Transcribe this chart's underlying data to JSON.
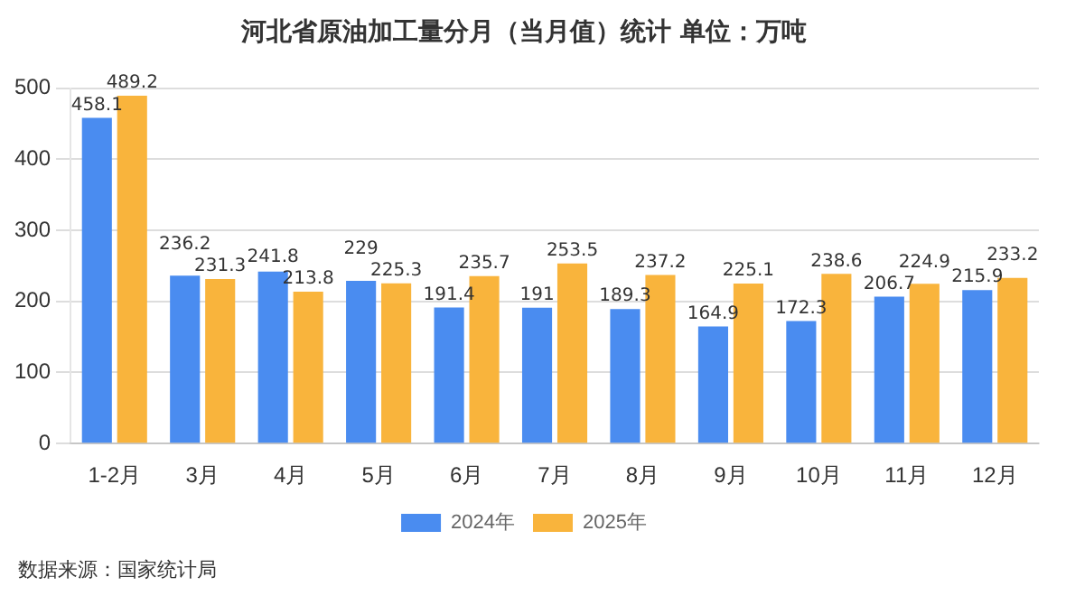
{
  "chart_data": {
    "type": "bar",
    "title": "河北省原油加工量分月（当月值）统计 单位：万吨",
    "categories": [
      "1-2月",
      "3月",
      "4月",
      "5月",
      "6月",
      "7月",
      "8月",
      "9月",
      "10月",
      "11月",
      "12月"
    ],
    "series": [
      {
        "name": "2024年",
        "color": "#4a8cf0",
        "values": [
          458.1,
          236.2,
          241.8,
          229,
          191.4,
          191,
          189.3,
          164.9,
          172.3,
          206.7,
          215.9
        ]
      },
      {
        "name": "2025年",
        "color": "#f9b43c",
        "values": [
          489.2,
          231.3,
          213.8,
          225.3,
          235.7,
          253.5,
          237.2,
          225.1,
          238.6,
          224.9,
          233.2
        ]
      }
    ],
    "ylim": [
      0,
      500
    ],
    "yticks": [
      0,
      100,
      200,
      300,
      400,
      500
    ],
    "grid": "y",
    "legend": "bottom",
    "data_labels": true,
    "annotations": [
      "数据来源：国家统计局"
    ]
  }
}
